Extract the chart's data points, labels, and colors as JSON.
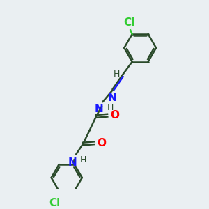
{
  "bg_color": "#eaeff2",
  "bond_color": "#2a4a2a",
  "N_color": "#1a1aff",
  "O_color": "#ff0000",
  "Cl_color": "#33cc33",
  "line_width": 1.8,
  "font_size": 10,
  "fig_size": [
    3.0,
    3.0
  ],
  "dpi": 100,
  "xlim": [
    0,
    10
  ],
  "ylim": [
    0,
    10
  ]
}
